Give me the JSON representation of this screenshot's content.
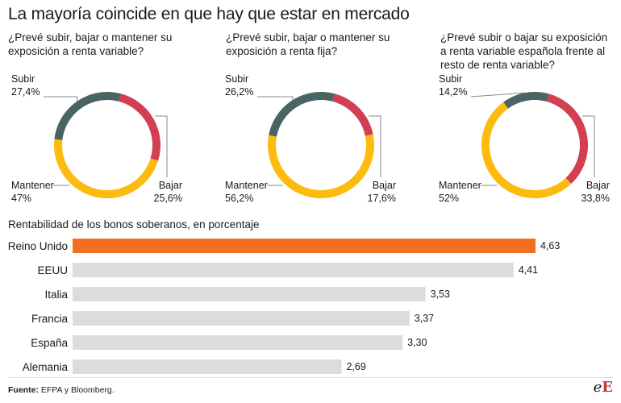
{
  "title": "La mayoría coincide en que hay que estar en mercado",
  "colors": {
    "subir": "#4a6363",
    "bajar": "#d23f50",
    "mantener": "#fcbb0e",
    "bar_highlight": "#f26f21",
    "bar_default": "#dcdcdc",
    "leader": "#888888"
  },
  "chart_data": [
    {
      "type": "pie",
      "question": "¿Prevé subir, bajar o mantener su exposición a renta variable?",
      "slices": [
        {
          "label": "Subir",
          "value": 27.4,
          "display": "27,4%",
          "color": "#4a6363"
        },
        {
          "label": "Bajar",
          "value": 25.6,
          "display": "25,6%",
          "color": "#d23f50"
        },
        {
          "label": "Mantener",
          "value": 47.0,
          "display": "47%",
          "color": "#fcbb0e"
        }
      ]
    },
    {
      "type": "pie",
      "question": "¿Prevé subir, bajar o mantener su exposición a renta fija?",
      "slices": [
        {
          "label": "Subir",
          "value": 26.2,
          "display": "26,2%",
          "color": "#4a6363"
        },
        {
          "label": "Bajar",
          "value": 17.6,
          "display": "17,6%",
          "color": "#d23f50"
        },
        {
          "label": "Mantener",
          "value": 56.2,
          "display": "56,2%",
          "color": "#fcbb0e"
        }
      ]
    },
    {
      "type": "pie",
      "question": "¿Prevé subir o bajar su exposición a renta variable española frente al resto de renta variable?",
      "slices": [
        {
          "label": "Subir",
          "value": 14.2,
          "display": "14,2%",
          "color": "#4a6363"
        },
        {
          "label": "Bajar",
          "value": 33.8,
          "display": "33,8%",
          "color": "#d23f50"
        },
        {
          "label": "Mantener",
          "value": 52.0,
          "display": "52%",
          "color": "#fcbb0e"
        }
      ]
    },
    {
      "type": "bar",
      "title": "Rentabilidad de los bonos soberanos, en porcentaje",
      "categories": [
        "Reino Unido",
        "EEUU",
        "Italia",
        "Francia",
        "España",
        "Alemania"
      ],
      "values": [
        4.63,
        4.41,
        3.53,
        3.37,
        3.3,
        2.69
      ],
      "value_labels": [
        "4,63",
        "4,41",
        "3,53",
        "3,37",
        "3,30",
        "2,69"
      ],
      "highlight": "Reino Unido",
      "xlim": [
        0,
        4.63
      ]
    }
  ],
  "source": {
    "label": "Fuente:",
    "text": "EFPA y Bloomberg."
  },
  "logo": {
    "e": "e",
    "f": "E"
  }
}
